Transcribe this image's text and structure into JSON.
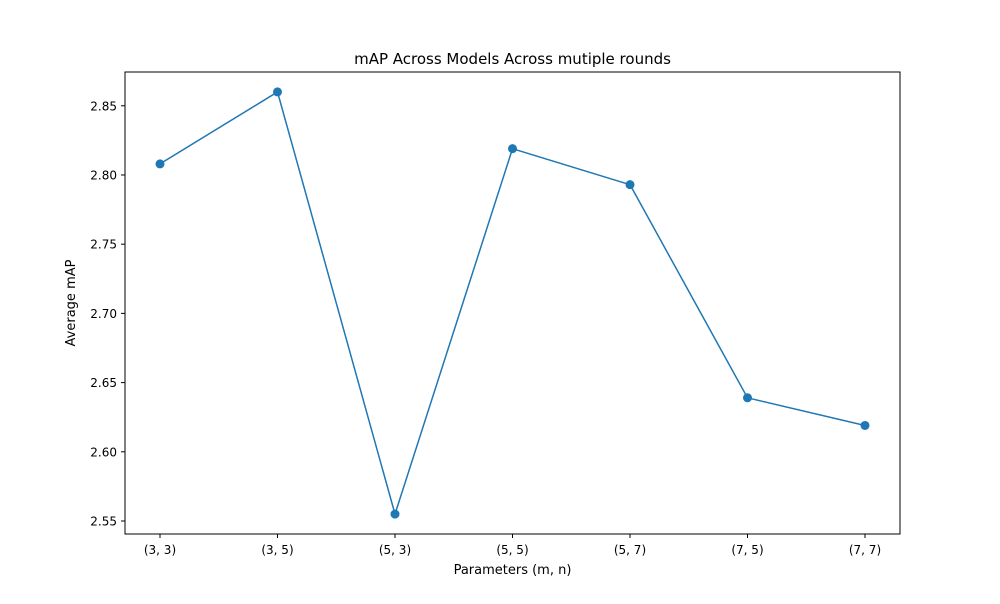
{
  "chart_data": {
    "type": "line",
    "title": "mAP Across Models Across mutiple rounds",
    "xlabel": "Parameters (m, n)",
    "ylabel": "Average mAP",
    "categories": [
      "(3, 3)",
      "(3, 5)",
      "(5, 3)",
      "(5, 5)",
      "(5, 7)",
      "(7, 5)",
      "(7, 7)"
    ],
    "series": [
      {
        "values": [
          2.808,
          2.86,
          2.555,
          2.819,
          2.793,
          2.639,
          2.619
        ]
      }
    ],
    "ylim": [
      2.5406,
      2.8744
    ],
    "yticks": [
      2.55,
      2.6,
      2.65,
      2.7,
      2.75,
      2.8,
      2.85
    ],
    "ytick_labels": [
      "2.55",
      "2.60",
      "2.65",
      "2.70",
      "2.75",
      "2.80",
      "2.85"
    ],
    "grid": false,
    "legend": "none",
    "line_color": "#1f77b4",
    "marker": "circle"
  }
}
